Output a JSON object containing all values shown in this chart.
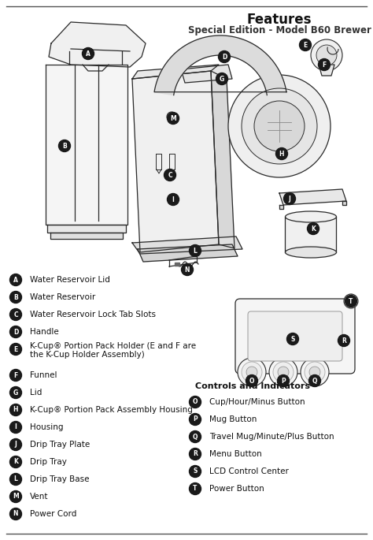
{
  "title": "Features",
  "subtitle": "Special Edition - Model B60 Brewer",
  "bg_color": "#ffffff",
  "line_color": "#444444",
  "badge_color": "#1a1a1a",
  "badge_text_color": "#ffffff",
  "label_fontsize": 7.5,
  "section_title_fontsize": 8.0,
  "title_fontsize": 12,
  "subtitle_fontsize": 8.5,
  "left_labels": [
    {
      "letter": "A",
      "text": "Water Reservoir Lid",
      "two_line": false
    },
    {
      "letter": "B",
      "text": "Water Reservoir",
      "two_line": false
    },
    {
      "letter": "C",
      "text": "Water Reservoir Lock Tab Slots",
      "two_line": false
    },
    {
      "letter": "D",
      "text": "Handle",
      "two_line": false
    },
    {
      "letter": "E",
      "text": "K-Cup® Portion Pack Holder (E and F are",
      "text2": "the K-Cup Holder Assembly)",
      "two_line": true
    },
    {
      "letter": "F",
      "text": "Funnel",
      "two_line": false
    },
    {
      "letter": "G",
      "text": "Lid",
      "two_line": false
    },
    {
      "letter": "H",
      "text": "K-Cup® Portion Pack Assembly Housing",
      "two_line": false
    },
    {
      "letter": "I",
      "text": "Housing",
      "two_line": false
    },
    {
      "letter": "J",
      "text": "Drip Tray Plate",
      "two_line": false
    },
    {
      "letter": "K",
      "text": "Drip Tray",
      "two_line": false
    },
    {
      "letter": "L",
      "text": "Drip Tray Base",
      "two_line": false
    },
    {
      "letter": "M",
      "text": "Vent",
      "two_line": false
    },
    {
      "letter": "N",
      "text": "Power Cord",
      "two_line": false
    }
  ],
  "right_section_title": "Controls and Indicators",
  "right_labels": [
    {
      "letter": "O",
      "text": "Cup/Hour/Minus Button"
    },
    {
      "letter": "P",
      "text": "Mug Button"
    },
    {
      "letter": "Q",
      "text": "Travel Mug/Minute/Plus Button"
    },
    {
      "letter": "R",
      "text": "Menu Button"
    },
    {
      "letter": "S",
      "text": "LCD Control Center"
    },
    {
      "letter": "T",
      "text": "Power Button"
    }
  ],
  "diagram_color": "#2a2a2a",
  "diagram_fill": "#f2f2f2",
  "diagram_fill2": "#e8e8e8"
}
